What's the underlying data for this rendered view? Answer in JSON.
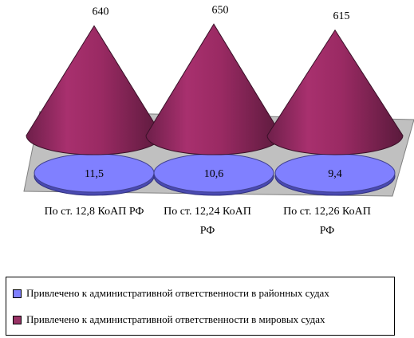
{
  "chart_data": {
    "type": "bar",
    "subtype": "3d-cone",
    "categories": [
      "По ст. 12,8 КоАП РФ",
      "По ст. 12,24 КоАП РФ",
      "По ст. 12,26 КоАП РФ"
    ],
    "series": [
      {
        "name": "Привлечено к административной ответственности в районных судах",
        "values": [
          11.5,
          10.6,
          9.4
        ],
        "labels": [
          "11,5",
          "10,6",
          "9,4"
        ],
        "color": "#8080ff"
      },
      {
        "name": "Привлечено к административной ответственности в мировых судах",
        "values": [
          640,
          650,
          615
        ],
        "labels": [
          "640",
          "650",
          "615"
        ],
        "color": "#993366"
      }
    ],
    "legend_position": "bottom",
    "grid": false,
    "floor_color": "#c0c0c0"
  }
}
